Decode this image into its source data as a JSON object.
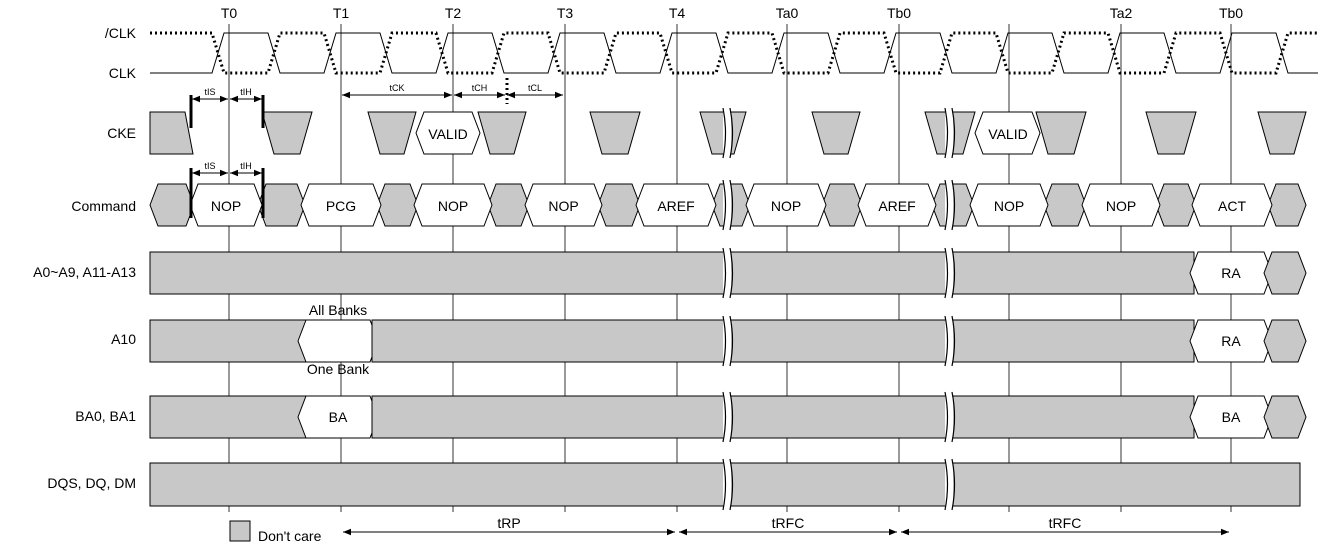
{
  "clock_labels": [
    "T0",
    "T1",
    "T2",
    "T3",
    "T4",
    "Ta0",
    "Tb0",
    "Ta2",
    "Tb0"
  ],
  "signals": {
    "clk_n": "/CLK",
    "clk": "CLK",
    "cke": "CKE",
    "command": "Command",
    "addr": "A0~A9, A11-A13",
    "a10": "A10",
    "ba": "BA0, BA1",
    "dqs": "DQS, DQ, DM"
  },
  "cke_values": [
    "VALID",
    "VALID"
  ],
  "commands": [
    "NOP",
    "PCG",
    "NOP",
    "NOP",
    "AREF",
    "NOP",
    "AREF",
    "NOP",
    "NOP",
    "ACT"
  ],
  "addr_value": "RA",
  "a10_value": "RA",
  "a10_notes": {
    "upper": "All Banks",
    "lower": "One Bank"
  },
  "ba_values": [
    "BA",
    "BA"
  ],
  "timing": {
    "tIS": "tIS",
    "tIH": "tIH",
    "tCK": "tCK",
    "tCH": "tCH",
    "tCL": "tCL",
    "tRP": "tRP",
    "tRFC": "tRFC"
  },
  "legend": {
    "dont_care": "Don't care"
  },
  "colors": {
    "dont_care_fill": "#c8c8c8",
    "line": "#000000"
  }
}
